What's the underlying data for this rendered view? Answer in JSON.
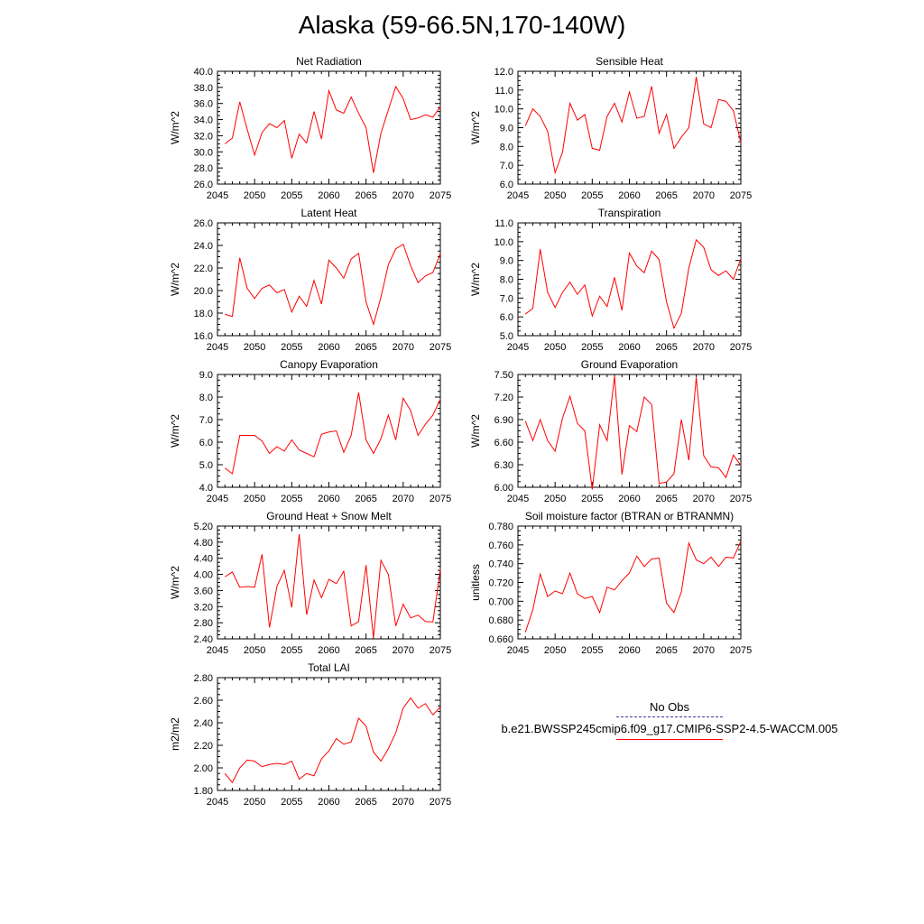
{
  "title": "Alaska (59-66.5N,170-140W)",
  "legend": {
    "obs_label": "No Obs",
    "model_label": "b.e21.BWSSP245cmip6.f09_g17.CMIP6-SSP2-4.5-WACCM.005",
    "obs_color": "#3b3b9a",
    "model_color": "#ff0000"
  },
  "chart_data": [
    {
      "type": "line",
      "title": "Net Radiation",
      "ylabel": "W/m^2",
      "xlim": [
        2045,
        2075
      ],
      "ylim": [
        26,
        40
      ],
      "xticks": [
        "2045",
        "2050",
        "2055",
        "2060",
        "2065",
        "2070",
        "2075"
      ],
      "yticks": [
        "26.0",
        "28.0",
        "30.0",
        "32.0",
        "34.0",
        "36.0",
        "38.0",
        "40.0"
      ],
      "x": [
        2046,
        2047,
        2048,
        2049,
        2050,
        2051,
        2052,
        2053,
        2054,
        2055,
        2056,
        2057,
        2058,
        2059,
        2060,
        2061,
        2062,
        2063,
        2064,
        2065,
        2066,
        2067,
        2068,
        2069,
        2070,
        2071,
        2072,
        2073,
        2074,
        2075
      ],
      "series": [
        {
          "values": [
            31.0,
            31.7,
            36.2,
            32.8,
            29.6,
            32.4,
            33.5,
            33.0,
            33.9,
            29.2,
            32.2,
            31.1,
            35.0,
            31.6,
            37.6,
            35.2,
            34.8,
            36.8,
            34.8,
            33.0,
            27.4,
            32.3,
            35.2,
            38.1,
            36.6,
            34.0,
            34.2,
            34.6,
            34.3,
            35.6
          ],
          "color": "#ff0000"
        }
      ]
    },
    {
      "type": "line",
      "title": "Sensible Heat",
      "ylabel": "W/m^2",
      "xlim": [
        2045,
        2075
      ],
      "ylim": [
        6,
        12
      ],
      "xticks": [
        "2045",
        "2050",
        "2055",
        "2060",
        "2065",
        "2070",
        "2075"
      ],
      "yticks": [
        "6.0",
        "7.0",
        "8.0",
        "9.0",
        "10.0",
        "11.0",
        "12.0"
      ],
      "x": [
        2046,
        2047,
        2048,
        2049,
        2050,
        2051,
        2052,
        2053,
        2054,
        2055,
        2056,
        2057,
        2058,
        2059,
        2060,
        2061,
        2062,
        2063,
        2064,
        2065,
        2066,
        2067,
        2068,
        2069,
        2070,
        2071,
        2072,
        2073,
        2074,
        2075
      ],
      "series": [
        {
          "values": [
            9.1,
            10.0,
            9.6,
            8.8,
            6.6,
            7.7,
            10.3,
            9.4,
            9.7,
            7.9,
            7.8,
            9.6,
            10.3,
            9.3,
            10.9,
            9.5,
            9.6,
            11.2,
            8.7,
            9.7,
            7.9,
            8.5,
            9.0,
            11.7,
            9.2,
            9.0,
            10.5,
            10.4,
            9.9,
            8.2
          ],
          "color": "#ff0000"
        }
      ]
    },
    {
      "type": "line",
      "title": "Latent Heat",
      "ylabel": "W/m^2",
      "xlim": [
        2045,
        2075
      ],
      "ylim": [
        16,
        26
      ],
      "xticks": [
        "2045",
        "2050",
        "2055",
        "2060",
        "2065",
        "2070",
        "2075"
      ],
      "yticks": [
        "16.0",
        "18.0",
        "20.0",
        "22.0",
        "24.0",
        "26.0"
      ],
      "x": [
        2046,
        2047,
        2048,
        2049,
        2050,
        2051,
        2052,
        2053,
        2054,
        2055,
        2056,
        2057,
        2058,
        2059,
        2060,
        2061,
        2062,
        2063,
        2064,
        2065,
        2066,
        2067,
        2068,
        2069,
        2070,
        2071,
        2072,
        2073,
        2074,
        2075
      ],
      "series": [
        {
          "values": [
            17.9,
            17.7,
            22.9,
            20.2,
            19.3,
            20.2,
            20.5,
            19.8,
            20.1,
            18.1,
            19.5,
            18.6,
            20.9,
            18.8,
            22.7,
            22.0,
            21.1,
            22.8,
            23.3,
            19.0,
            17.0,
            19.4,
            22.3,
            23.7,
            24.1,
            22.2,
            20.7,
            21.3,
            21.6,
            23.3
          ],
          "color": "#ff0000"
        }
      ]
    },
    {
      "type": "line",
      "title": "Transpiration",
      "ylabel": "W/m^2",
      "xlim": [
        2045,
        2075
      ],
      "ylim": [
        5,
        11
      ],
      "xticks": [
        "2045",
        "2050",
        "2055",
        "2060",
        "2065",
        "2070",
        "2075"
      ],
      "yticks": [
        "5.0",
        "6.0",
        "7.0",
        "8.0",
        "9.0",
        "10.0",
        "11.0"
      ],
      "x": [
        2046,
        2047,
        2048,
        2049,
        2050,
        2051,
        2052,
        2053,
        2054,
        2055,
        2056,
        2057,
        2058,
        2059,
        2060,
        2061,
        2062,
        2063,
        2064,
        2065,
        2066,
        2067,
        2068,
        2069,
        2070,
        2071,
        2072,
        2073,
        2074,
        2075
      ],
      "series": [
        {
          "values": [
            6.15,
            6.45,
            9.6,
            7.3,
            6.5,
            7.3,
            7.85,
            7.2,
            7.7,
            6.05,
            7.1,
            6.55,
            8.1,
            6.35,
            9.4,
            8.7,
            8.35,
            9.5,
            9.05,
            6.8,
            5.4,
            6.2,
            8.6,
            10.1,
            9.7,
            8.5,
            8.2,
            8.45,
            8.0,
            9.1
          ],
          "color": "#ff0000"
        }
      ]
    },
    {
      "type": "line",
      "title": "Canopy Evaporation",
      "ylabel": "W/m^2",
      "xlim": [
        2045,
        2075
      ],
      "ylim": [
        4,
        9
      ],
      "xticks": [
        "2045",
        "2050",
        "2055",
        "2060",
        "2065",
        "2070",
        "2075"
      ],
      "yticks": [
        "4.0",
        "5.0",
        "6.0",
        "7.0",
        "8.0",
        "9.0"
      ],
      "x": [
        2046,
        2047,
        2048,
        2049,
        2050,
        2051,
        2052,
        2053,
        2054,
        2055,
        2056,
        2057,
        2058,
        2059,
        2060,
        2061,
        2062,
        2063,
        2064,
        2065,
        2066,
        2067,
        2068,
        2069,
        2070,
        2071,
        2072,
        2073,
        2074,
        2075
      ],
      "series": [
        {
          "values": [
            4.85,
            4.6,
            6.3,
            6.3,
            6.3,
            6.05,
            5.5,
            5.8,
            5.6,
            6.1,
            5.65,
            5.5,
            5.35,
            6.35,
            6.45,
            6.5,
            5.55,
            6.3,
            8.2,
            6.1,
            5.5,
            6.15,
            7.2,
            6.1,
            7.95,
            7.4,
            6.3,
            6.8,
            7.2,
            7.9
          ],
          "color": "#ff0000"
        }
      ]
    },
    {
      "type": "line",
      "title": "Ground Evaporation",
      "ylabel": "W/m^2",
      "xlim": [
        2045,
        2075
      ],
      "ylim": [
        6.0,
        7.5
      ],
      "xticks": [
        "2045",
        "2050",
        "2055",
        "2060",
        "2065",
        "2070",
        "2075"
      ],
      "yticks": [
        "6.00",
        "6.30",
        "6.60",
        "6.90",
        "7.20",
        "7.50"
      ],
      "x": [
        2046,
        2047,
        2048,
        2049,
        2050,
        2051,
        2052,
        2053,
        2054,
        2055,
        2056,
        2057,
        2058,
        2059,
        2060,
        2061,
        2062,
        2063,
        2064,
        2065,
        2066,
        2067,
        2068,
        2069,
        2070,
        2071,
        2072,
        2073,
        2074,
        2075
      ],
      "series": [
        {
          "values": [
            6.88,
            6.62,
            6.9,
            6.62,
            6.48,
            6.92,
            7.21,
            6.85,
            6.75,
            5.97,
            6.83,
            6.62,
            7.48,
            6.17,
            6.82,
            6.74,
            7.2,
            7.1,
            6.05,
            6.07,
            6.18,
            6.9,
            6.36,
            7.46,
            6.42,
            6.27,
            6.26,
            6.13,
            6.43,
            6.29
          ],
          "color": "#ff0000"
        }
      ]
    },
    {
      "type": "line",
      "title": "Ground Heat + Snow Melt",
      "ylabel": "W/m^2",
      "xlim": [
        2045,
        2075
      ],
      "ylim": [
        2.4,
        5.2
      ],
      "xticks": [
        "2045",
        "2050",
        "2055",
        "2060",
        "2065",
        "2070",
        "2075"
      ],
      "yticks": [
        "2.40",
        "2.80",
        "3.20",
        "3.60",
        "4.00",
        "4.40",
        "4.80",
        "5.20"
      ],
      "x": [
        2046,
        2047,
        2048,
        2049,
        2050,
        2051,
        2052,
        2053,
        2054,
        2055,
        2056,
        2057,
        2058,
        2059,
        2060,
        2061,
        2062,
        2063,
        2064,
        2065,
        2066,
        2067,
        2068,
        2069,
        2070,
        2071,
        2072,
        2073,
        2074,
        2075
      ],
      "series": [
        {
          "values": [
            3.94,
            4.06,
            3.68,
            3.7,
            3.68,
            4.5,
            2.68,
            3.7,
            4.1,
            3.18,
            5.0,
            3.0,
            3.86,
            3.42,
            3.88,
            3.77,
            4.08,
            2.72,
            2.83,
            4.23,
            2.42,
            4.35,
            4.0,
            2.72,
            3.26,
            2.92,
            2.99,
            2.83,
            2.82,
            4.13
          ],
          "color": "#ff0000"
        }
      ]
    },
    {
      "type": "line",
      "title": "Soil moisture factor (BTRAN or BTRANMN)",
      "ylabel": "unitless",
      "xlim": [
        2045,
        2075
      ],
      "ylim": [
        0.66,
        0.78
      ],
      "xticks": [
        "2045",
        "2050",
        "2055",
        "2060",
        "2065",
        "2070",
        "2075"
      ],
      "yticks": [
        "0.660",
        "0.680",
        "0.700",
        "0.720",
        "0.740",
        "0.760",
        "0.780"
      ],
      "x": [
        2046,
        2047,
        2048,
        2049,
        2050,
        2051,
        2052,
        2053,
        2054,
        2055,
        2056,
        2057,
        2058,
        2059,
        2060,
        2061,
        2062,
        2063,
        2064,
        2065,
        2066,
        2067,
        2068,
        2069,
        2070,
        2071,
        2072,
        2073,
        2074,
        2075
      ],
      "series": [
        {
          "values": [
            0.667,
            0.691,
            0.729,
            0.705,
            0.711,
            0.708,
            0.73,
            0.708,
            0.703,
            0.705,
            0.688,
            0.715,
            0.712,
            0.722,
            0.73,
            0.748,
            0.737,
            0.745,
            0.746,
            0.698,
            0.688,
            0.71,
            0.762,
            0.744,
            0.74,
            0.747,
            0.737,
            0.747,
            0.746,
            0.764
          ],
          "color": "#ff0000"
        }
      ]
    },
    {
      "type": "line",
      "title": "Total LAI",
      "ylabel": "m2/m2",
      "xlim": [
        2045,
        2075
      ],
      "ylim": [
        1.8,
        2.8
      ],
      "xticks": [
        "2045",
        "2050",
        "2055",
        "2060",
        "2065",
        "2070",
        "2075"
      ],
      "yticks": [
        "1.80",
        "2.00",
        "2.20",
        "2.40",
        "2.60",
        "2.80"
      ],
      "x": [
        2046,
        2047,
        2048,
        2049,
        2050,
        2051,
        2052,
        2053,
        2054,
        2055,
        2056,
        2057,
        2058,
        2059,
        2060,
        2061,
        2062,
        2063,
        2064,
        2065,
        2066,
        2067,
        2068,
        2069,
        2070,
        2071,
        2072,
        2073,
        2074,
        2075
      ],
      "series": [
        {
          "values": [
            1.95,
            1.87,
            2.0,
            2.07,
            2.06,
            2.01,
            2.03,
            2.04,
            2.03,
            2.06,
            1.9,
            1.95,
            1.93,
            2.08,
            2.15,
            2.26,
            2.21,
            2.23,
            2.44,
            2.37,
            2.14,
            2.06,
            2.17,
            2.31,
            2.53,
            2.62,
            2.53,
            2.57,
            2.47,
            2.54
          ],
          "color": "#ff0000"
        }
      ]
    }
  ]
}
